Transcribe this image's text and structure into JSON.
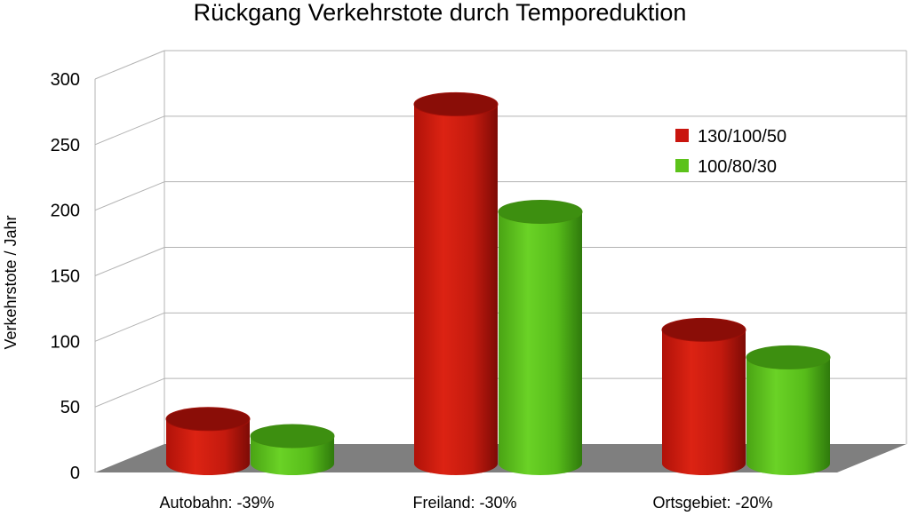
{
  "chart_data": {
    "type": "bar",
    "title": "Rückgang Verkehrstote durch Temporeduktion",
    "xlabel": "",
    "ylabel": "Verkehrstote / Jahr",
    "ylim": [
      0,
      300
    ],
    "yticks": [
      0,
      50,
      100,
      150,
      200,
      250,
      300
    ],
    "grid": true,
    "legend_position": "top-right",
    "categories": [
      "Autobahn: -39%",
      "Freiland: -30%",
      "Ortsgebiet: -20%"
    ],
    "series": [
      {
        "name": "130/100/50",
        "color": "#c9150e",
        "values": [
          34,
          274,
          102
        ]
      },
      {
        "name": "100/80/30",
        "color": "#5cc21a",
        "values": [
          21,
          192,
          81
        ]
      }
    ]
  }
}
